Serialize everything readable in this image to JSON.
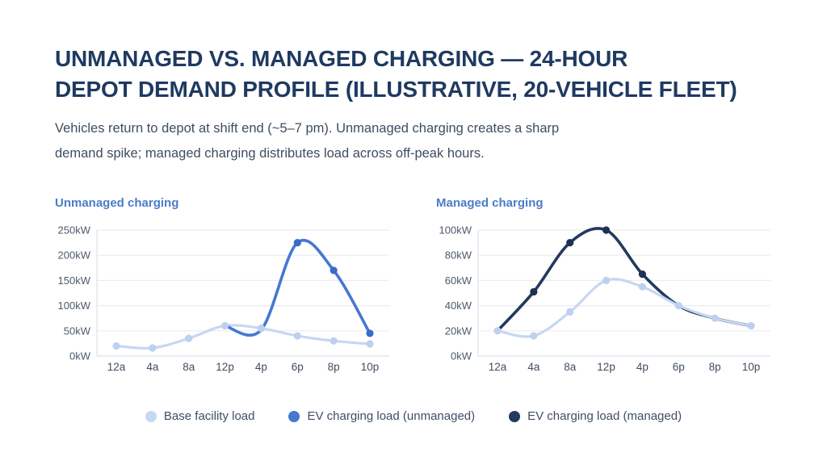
{
  "header": {
    "title_lines": [
      "UNMANAGED VS. MANAGED CHARGING — 24-HOUR",
      "DEPOT DEMAND PROFILE (ILLUSTRATIVE, 20-VEHICLE FLEET)"
    ],
    "subtitle_lines": [
      "Vehicles return to depot at shift end (~5–7 pm). Unmanaged charging creates a sharp",
      "demand spike; managed charging distributes load across off-peak hours."
    ]
  },
  "chart_data": [
    {
      "type": "line",
      "title": "Unmanaged charging",
      "categories": [
        "12a",
        "4a",
        "8a",
        "12p",
        "4p",
        "6p",
        "8p",
        "10p"
      ],
      "ylim": [
        0,
        250
      ],
      "ytick_values": [
        0,
        50,
        100,
        150,
        200,
        250
      ],
      "ytick_labels": [
        "0kW",
        "50kW",
        "100kW",
        "150kW",
        "200kW",
        "250kW"
      ],
      "grid": true,
      "series": [
        {
          "name": "Base facility load",
          "color": "#c7d7f2",
          "marker_color": "#bdd0ef",
          "width": 3.2,
          "markers": "all",
          "values": [
            20,
            16,
            35,
            60,
            55,
            40,
            30,
            24
          ]
        },
        {
          "name": "EV charging load (unmanaged)",
          "color": "#4678d2",
          "marker_color": "#3b6ac8",
          "width": 3.6,
          "markers": [
            5,
            6,
            7
          ],
          "values": [
            null,
            null,
            null,
            60,
            52,
            225,
            170,
            45
          ]
        }
      ]
    },
    {
      "type": "line",
      "title": "Managed charging",
      "categories": [
        "12a",
        "4a",
        "8a",
        "12p",
        "4p",
        "6p",
        "8p",
        "10p"
      ],
      "ylim": [
        0,
        100
      ],
      "ytick_values": [
        0,
        20,
        40,
        60,
        80,
        100
      ],
      "ytick_labels": [
        "0kW",
        "20kW",
        "40kW",
        "60kW",
        "80kW",
        "100kW"
      ],
      "grid": true,
      "series": [
        {
          "name": "EV charging load (managed)",
          "color": "#223a5e",
          "marker_color": "#1d3252",
          "width": 3.6,
          "markers": [
            1,
            2,
            3,
            4
          ],
          "values": [
            20,
            51,
            90,
            100,
            65,
            40,
            30,
            24
          ]
        },
        {
          "name": "Base facility load",
          "color": "#c7d7f2",
          "marker_color": "#bdd0ef",
          "width": 3.2,
          "markers": "all",
          "values": [
            20,
            16,
            35,
            60,
            55,
            40,
            30,
            24
          ]
        }
      ]
    }
  ],
  "legend": {
    "items": [
      {
        "label": "Base facility load",
        "color": "#c7d7f2"
      },
      {
        "label": "EV charging load (unmanaged)",
        "color": "#4678d2"
      },
      {
        "label": "EV charging load (managed)",
        "color": "#223a5e"
      }
    ]
  },
  "colors": {
    "title_text": "#1f3a61",
    "subtitle_text": "#3d4d61",
    "chart_title_text": "#4a7cc9",
    "grid_line": "#ececf0",
    "axis_line": "#dde1e8",
    "y_label_text": "#4c5a6e",
    "x_label_text": "#3f4e63",
    "legend_text": "#3f4e63"
  }
}
